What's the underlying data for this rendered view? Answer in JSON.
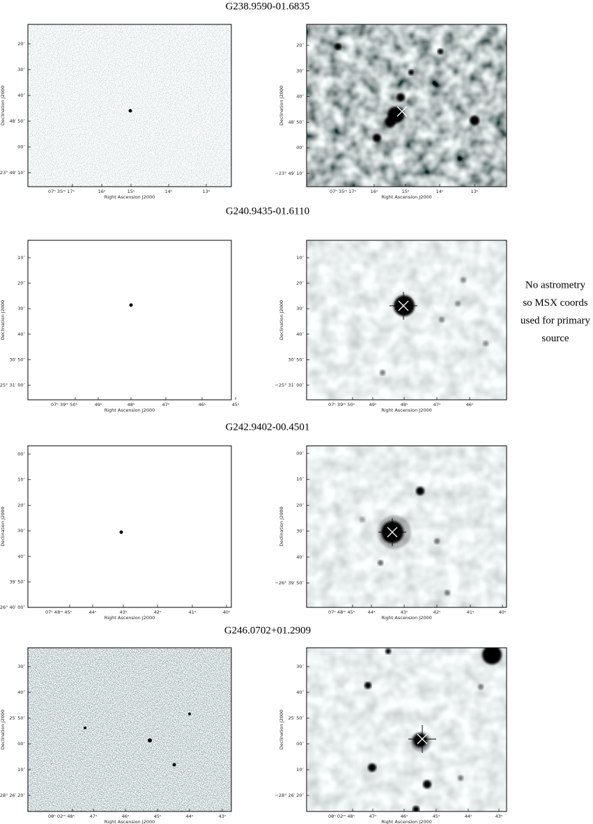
{
  "panels": [
    {
      "title": "G238.9590-01.6835",
      "left": {
        "xticks": [
          "07ʰ 35ᵐ 17ˢ",
          "16ˢ",
          "15ˢ",
          "14ˢ",
          "13ˢ"
        ],
        "yticks": [
          "20″",
          "30″",
          "40″",
          "48′ 50″",
          "00″",
          "−23° 49′ 10″"
        ],
        "xlabel": "Right Ascension J2000",
        "ylabel": "Declination J2000"
      },
      "right": {
        "xticks": [
          "07ʰ 35ᵐ 17ˢ",
          "16ˢ",
          "15ˢ",
          "14ˢ",
          "13ˢ"
        ],
        "yticks": [
          "20″",
          "30″",
          "40″",
          "48′ 50″",
          "00″",
          "−23° 49′ 10″"
        ],
        "xlabel": "Right Ascension J2000",
        "ylabel": "Declination J2000"
      }
    },
    {
      "title": "G240.9435-01.6110",
      "left": {
        "xticks": [
          "07ʰ 39ᵐ 50ˢ",
          "49ˢ",
          "48ˢ",
          "47ˢ",
          "46ˢ",
          "45ˢ"
        ],
        "yticks": [
          "10″",
          "20″",
          "30″",
          "40″",
          "30′ 50″",
          "−25° 31′ 00″"
        ],
        "xlabel": "Right Ascension J2000",
        "ylabel": "Declination J2000"
      },
      "right": {
        "xticks": [
          "07ʰ 39ᵐ 50ˢ",
          "49ˢ",
          "48ˢ",
          "47ˢ",
          "46ˢ"
        ],
        "yticks": [
          "10″",
          "20″",
          "30″",
          "40″",
          "30′ 50″",
          "−25° 31′ 00″"
        ],
        "xlabel": "Right Ascension J2000",
        "ylabel": "Declination J2000"
      }
    },
    {
      "title": "G242.9402-00.4501",
      "left": {
        "xticks": [
          "07ʰ 48ᵐ 45ˢ",
          "44ˢ",
          "43ˢ",
          "42ˢ",
          "41ˢ",
          "40ˢ"
        ],
        "yticks": [
          "00″",
          "10″",
          "20″",
          "30″",
          "40″",
          "39′ 50″",
          "−26° 40′ 00″"
        ],
        "xlabel": "Right Ascension J2000",
        "ylabel": "Declination J2000"
      },
      "right": {
        "xticks": [
          "07ʰ 48ᵐ 45ˢ",
          "44ˢ",
          "43ˢ",
          "42ˢ",
          "41ˢ",
          "40ˢ"
        ],
        "yticks": [
          "00″",
          "10″",
          "20″",
          "30″",
          "40″",
          "−26° 39′ 50″"
        ],
        "xlabel": "Right Ascension J2000",
        "ylabel": "Declination J2000"
      }
    },
    {
      "title": "G246.0702+01.2909",
      "left": {
        "xticks": [
          "08ʰ 02ᵐ 48ˢ",
          "47ˢ",
          "46ˢ",
          "45ˢ",
          "44ˢ",
          "43ˢ"
        ],
        "yticks": [
          "30″",
          "40″",
          "25′ 50″",
          "00″",
          "10″",
          "−28° 26′ 20″"
        ],
        "xlabel": "Right Ascension J2000",
        "ylabel": "Declination J2000"
      },
      "right": {
        "xticks": [
          "08ʰ 02ᵐ 48ˢ",
          "47ˢ",
          "46ˢ",
          "45ˢ",
          "44ˢ",
          "43ˢ"
        ],
        "yticks": [
          "30″",
          "40″",
          "25′ 50″",
          "00″",
          "10″",
          "−28° 26′ 20″"
        ],
        "xlabel": "Right Ascension J2000",
        "ylabel": "Declination J2000"
      }
    }
  ],
  "note": [
    "No astrometry",
    "so MSX coords",
    "used for primary",
    "source"
  ]
}
